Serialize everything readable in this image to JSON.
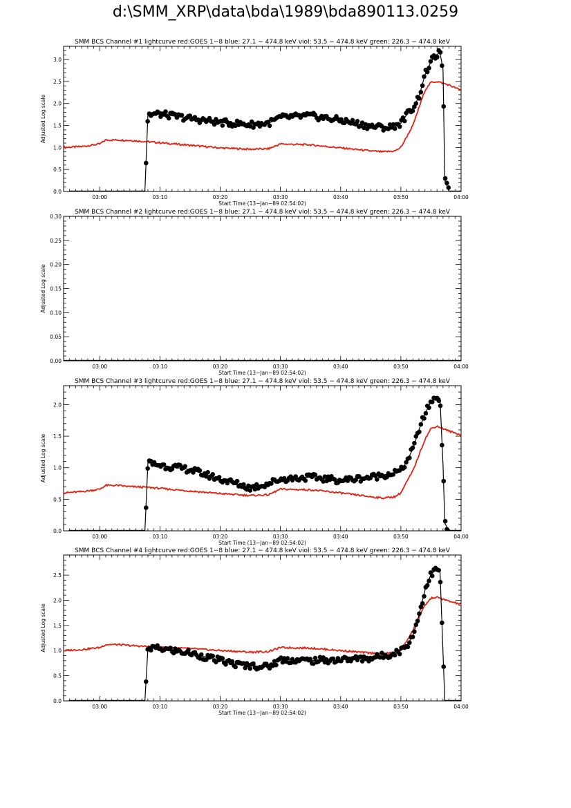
{
  "page_title": "d:\\SMM_XRP\\data\\bda\\1989\\bda890113.0259",
  "colors": {
    "goes": "#e02010",
    "hxr": "#000000",
    "axis": "#000000"
  },
  "chart_data": [
    {
      "type": "scatter",
      "title": "SMM BCS Channel #1 lightcurve  red:GOES 1−8  blue: 27.1 − 474.8 keV  viol: 53.5 − 474.8 keV  green: 226.3 − 474.8 keV",
      "xlabel": "Start Time (13−Jan−89 02:54:02)",
      "ylabel": "Adjusted Log scale",
      "xlim": [
        "02:54",
        "04:00"
      ],
      "ylim": [
        0,
        3.3
      ],
      "xticks": [
        "03:00",
        "03:10",
        "03:20",
        "03:30",
        "03:40",
        "03:50",
        "04:00"
      ],
      "yticks": [
        "0.0",
        "0.5",
        "1.0",
        "1.5",
        "2.0",
        "2.5",
        "3.0"
      ],
      "series": [
        {
          "color": "red",
          "kind": "line",
          "points": [
            [
              "02:54",
              1.0
            ],
            [
              "02:57",
              1.02
            ],
            [
              "03:00",
              1.08
            ],
            [
              "03:01",
              1.17
            ],
            [
              "03:03",
              1.17
            ],
            [
              "03:05",
              1.16
            ],
            [
              "03:08",
              1.13
            ],
            [
              "03:15",
              1.05
            ],
            [
              "03:20",
              0.99
            ],
            [
              "03:25",
              0.96
            ],
            [
              "03:28",
              0.97
            ],
            [
              "03:30",
              1.08
            ],
            [
              "03:35",
              1.06
            ],
            [
              "03:40",
              0.99
            ],
            [
              "03:45",
              0.92
            ],
            [
              "03:47",
              0.9
            ],
            [
              "03:49",
              0.92
            ],
            [
              "03:50",
              1.0
            ],
            [
              "03:51",
              1.25
            ],
            [
              "03:52",
              1.5
            ],
            [
              "03:53",
              1.9
            ],
            [
              "03:54",
              2.3
            ],
            [
              "03:55",
              2.48
            ],
            [
              "03:56",
              2.5
            ],
            [
              "03:58",
              2.42
            ],
            [
              "04:00",
              2.3
            ]
          ]
        },
        {
          "color": "black",
          "kind": "points+line",
          "points": [
            [
              "02:55",
              0.0
            ],
            [
              "03:00",
              0.0
            ],
            [
              "03:05",
              0.0
            ],
            [
              "03:07.5",
              0.0
            ],
            [
              "03:08",
              1.75
            ],
            [
              "03:10",
              1.76
            ],
            [
              "03:15",
              1.66
            ],
            [
              "03:20",
              1.57
            ],
            [
              "03:25",
              1.52
            ],
            [
              "03:28",
              1.55
            ],
            [
              "03:30",
              1.68
            ],
            [
              "03:35",
              1.72
            ],
            [
              "03:40",
              1.62
            ],
            [
              "03:45",
              1.48
            ],
            [
              "03:48",
              1.45
            ],
            [
              "03:50",
              1.55
            ],
            [
              "03:51",
              1.75
            ],
            [
              "03:52",
              1.9
            ],
            [
              "03:53",
              2.15
            ],
            [
              "03:54",
              2.65
            ],
            [
              "03:55",
              2.95
            ],
            [
              "03:56",
              3.12
            ],
            [
              "03:56.5",
              3.15
            ],
            [
              "03:57",
              2.78
            ],
            [
              "03:57.3",
              0.25
            ],
            [
              "03:58",
              0.0
            ],
            [
              "04:00",
              0.0
            ]
          ]
        }
      ]
    },
    {
      "type": "scatter",
      "title": "SMM BCS Channel #2 lightcurve  red:GOES 1−8  blue: 27.1 − 474.8 keV  viol: 53.5 − 474.8 keV  green: 226.3 − 474.8 keV",
      "xlabel": "Start Time (13−Jan−89 02:54:02)",
      "ylabel": "Adjusted Log scale",
      "xlim": [
        "02:54",
        "04:00"
      ],
      "ylim": [
        0,
        0.3
      ],
      "xticks": [
        "03:00",
        "03:10",
        "03:20",
        "03:30",
        "03:40",
        "03:50",
        "04:00"
      ],
      "yticks": [
        "0.00",
        "0.05",
        "0.10",
        "0.15",
        "0.20",
        "0.25",
        "0.30"
      ],
      "series": [
        {
          "color": "black",
          "kind": "points+line",
          "points": [
            [
              "02:54",
              0.0
            ],
            [
              "03:10",
              0.0
            ],
            [
              "03:20",
              0.0
            ],
            [
              "03:30",
              0.0
            ],
            [
              "03:40",
              0.0
            ],
            [
              "03:50",
              0.0
            ],
            [
              "04:00",
              0.0
            ]
          ]
        }
      ]
    },
    {
      "type": "scatter",
      "title": "SMM BCS Channel #3 lightcurve  red:GOES 1−8  blue: 27.1 − 474.8 keV  viol: 53.5 − 474.8 keV  green: 226.3 − 474.8 keV",
      "xlabel": "Start Time (13−Jan−89 02:54:02)",
      "ylabel": "Adjusted Log scale",
      "xlim": [
        "02:54",
        "04:00"
      ],
      "ylim": [
        0,
        2.3
      ],
      "xticks": [
        "03:00",
        "03:10",
        "03:20",
        "03:30",
        "03:40",
        "03:50",
        "04:00"
      ],
      "yticks": [
        "0.0",
        "0.5",
        "1.0",
        "1.5",
        "2.0"
      ],
      "series": [
        {
          "color": "red",
          "kind": "line",
          "points": [
            [
              "02:54",
              0.6
            ],
            [
              "02:57",
              0.62
            ],
            [
              "03:00",
              0.66
            ],
            [
              "03:01",
              0.72
            ],
            [
              "03:03",
              0.72
            ],
            [
              "03:05",
              0.7
            ],
            [
              "03:08",
              0.69
            ],
            [
              "03:15",
              0.63
            ],
            [
              "03:20",
              0.59
            ],
            [
              "03:25",
              0.56
            ],
            [
              "03:28",
              0.57
            ],
            [
              "03:30",
              0.66
            ],
            [
              "03:35",
              0.65
            ],
            [
              "03:40",
              0.6
            ],
            [
              "03:45",
              0.54
            ],
            [
              "03:47",
              0.52
            ],
            [
              "03:49",
              0.54
            ],
            [
              "03:50",
              0.6
            ],
            [
              "03:51",
              0.78
            ],
            [
              "03:52",
              0.95
            ],
            [
              "03:53",
              1.2
            ],
            [
              "03:54",
              1.45
            ],
            [
              "03:55",
              1.62
            ],
            [
              "03:56",
              1.66
            ],
            [
              "03:58",
              1.58
            ],
            [
              "04:00",
              1.52
            ]
          ]
        },
        {
          "color": "black",
          "kind": "points+line",
          "points": [
            [
              "02:55",
              0.0
            ],
            [
              "03:00",
              0.0
            ],
            [
              "03:05",
              0.0
            ],
            [
              "03:07.5",
              0.0
            ],
            [
              "03:08",
              1.08
            ],
            [
              "03:10",
              1.04
            ],
            [
              "03:15",
              0.97
            ],
            [
              "03:20",
              0.82
            ],
            [
              "03:23",
              0.74
            ],
            [
              "03:25",
              0.68
            ],
            [
              "03:28",
              0.75
            ],
            [
              "03:30",
              0.82
            ],
            [
              "03:35",
              0.85
            ],
            [
              "03:40",
              0.8
            ],
            [
              "03:45",
              0.85
            ],
            [
              "03:48",
              0.9
            ],
            [
              "03:50",
              0.95
            ],
            [
              "03:51",
              1.1
            ],
            [
              "03:52",
              1.3
            ],
            [
              "03:53",
              1.6
            ],
            [
              "03:54",
              1.85
            ],
            [
              "03:55",
              2.05
            ],
            [
              "03:56",
              2.12
            ],
            [
              "03:56.5",
              2.1
            ],
            [
              "03:57",
              1.05
            ],
            [
              "03:57.3",
              0.12
            ],
            [
              "03:58",
              0.0
            ],
            [
              "04:00",
              0.0
            ]
          ]
        }
      ]
    },
    {
      "type": "scatter",
      "title": "SMM BCS Channel #4 lightcurve  red:GOES 1−8  blue: 27.1 − 474.8 keV  viol: 53.5 − 474.8 keV  green: 226.3 − 474.8 keV",
      "xlabel": "Start Time (13−Jan−89 02:54:02)",
      "ylabel": "Adjusted Log scale",
      "xlim": [
        "02:54",
        "04:00"
      ],
      "ylim": [
        0,
        2.9
      ],
      "xticks": [
        "03:00",
        "03:10",
        "03:20",
        "03:30",
        "03:40",
        "03:50",
        "04:00"
      ],
      "yticks": [
        "0.0",
        "0.5",
        "1.0",
        "1.5",
        "2.0",
        "2.5"
      ],
      "series": [
        {
          "color": "red",
          "kind": "line",
          "points": [
            [
              "02:54",
              1.0
            ],
            [
              "02:57",
              1.02
            ],
            [
              "03:00",
              1.06
            ],
            [
              "03:01",
              1.12
            ],
            [
              "03:03",
              1.12
            ],
            [
              "03:05",
              1.1
            ],
            [
              "03:08",
              1.08
            ],
            [
              "03:15",
              1.04
            ],
            [
              "03:20",
              1.0
            ],
            [
              "03:25",
              0.97
            ],
            [
              "03:28",
              0.98
            ],
            [
              "03:30",
              1.06
            ],
            [
              "03:35",
              1.05
            ],
            [
              "03:40",
              1.0
            ],
            [
              "03:45",
              0.95
            ],
            [
              "03:47",
              0.94
            ],
            [
              "03:49",
              0.96
            ],
            [
              "03:50",
              1.02
            ],
            [
              "03:51",
              1.2
            ],
            [
              "03:52",
              1.4
            ],
            [
              "03:53",
              1.65
            ],
            [
              "03:54",
              1.9
            ],
            [
              "03:55",
              2.04
            ],
            [
              "03:56",
              2.06
            ],
            [
              "03:58",
              1.98
            ],
            [
              "04:00",
              1.92
            ]
          ]
        },
        {
          "color": "black",
          "kind": "points+line",
          "points": [
            [
              "02:55",
              0.0
            ],
            [
              "03:00",
              0.0
            ],
            [
              "03:05",
              0.0
            ],
            [
              "03:07.5",
              0.0
            ],
            [
              "03:08",
              1.05
            ],
            [
              "03:10",
              1.04
            ],
            [
              "03:15",
              0.95
            ],
            [
              "03:20",
              0.8
            ],
            [
              "03:23",
              0.72
            ],
            [
              "03:25",
              0.7
            ],
            [
              "03:28",
              0.68
            ],
            [
              "03:30",
              0.82
            ],
            [
              "03:35",
              0.8
            ],
            [
              "03:40",
              0.82
            ],
            [
              "03:45",
              0.85
            ],
            [
              "03:48",
              0.92
            ],
            [
              "03:50",
              1.0
            ],
            [
              "03:51",
              1.1
            ],
            [
              "03:52",
              1.3
            ],
            [
              "03:53",
              1.7
            ],
            [
              "03:54",
              2.2
            ],
            [
              "03:55",
              2.52
            ],
            [
              "03:56",
              2.62
            ],
            [
              "03:56.5",
              2.58
            ],
            [
              "03:57",
              0.95
            ],
            [
              "03:57.3",
              0.0
            ],
            [
              "04:00",
              0.0
            ]
          ]
        }
      ]
    }
  ]
}
